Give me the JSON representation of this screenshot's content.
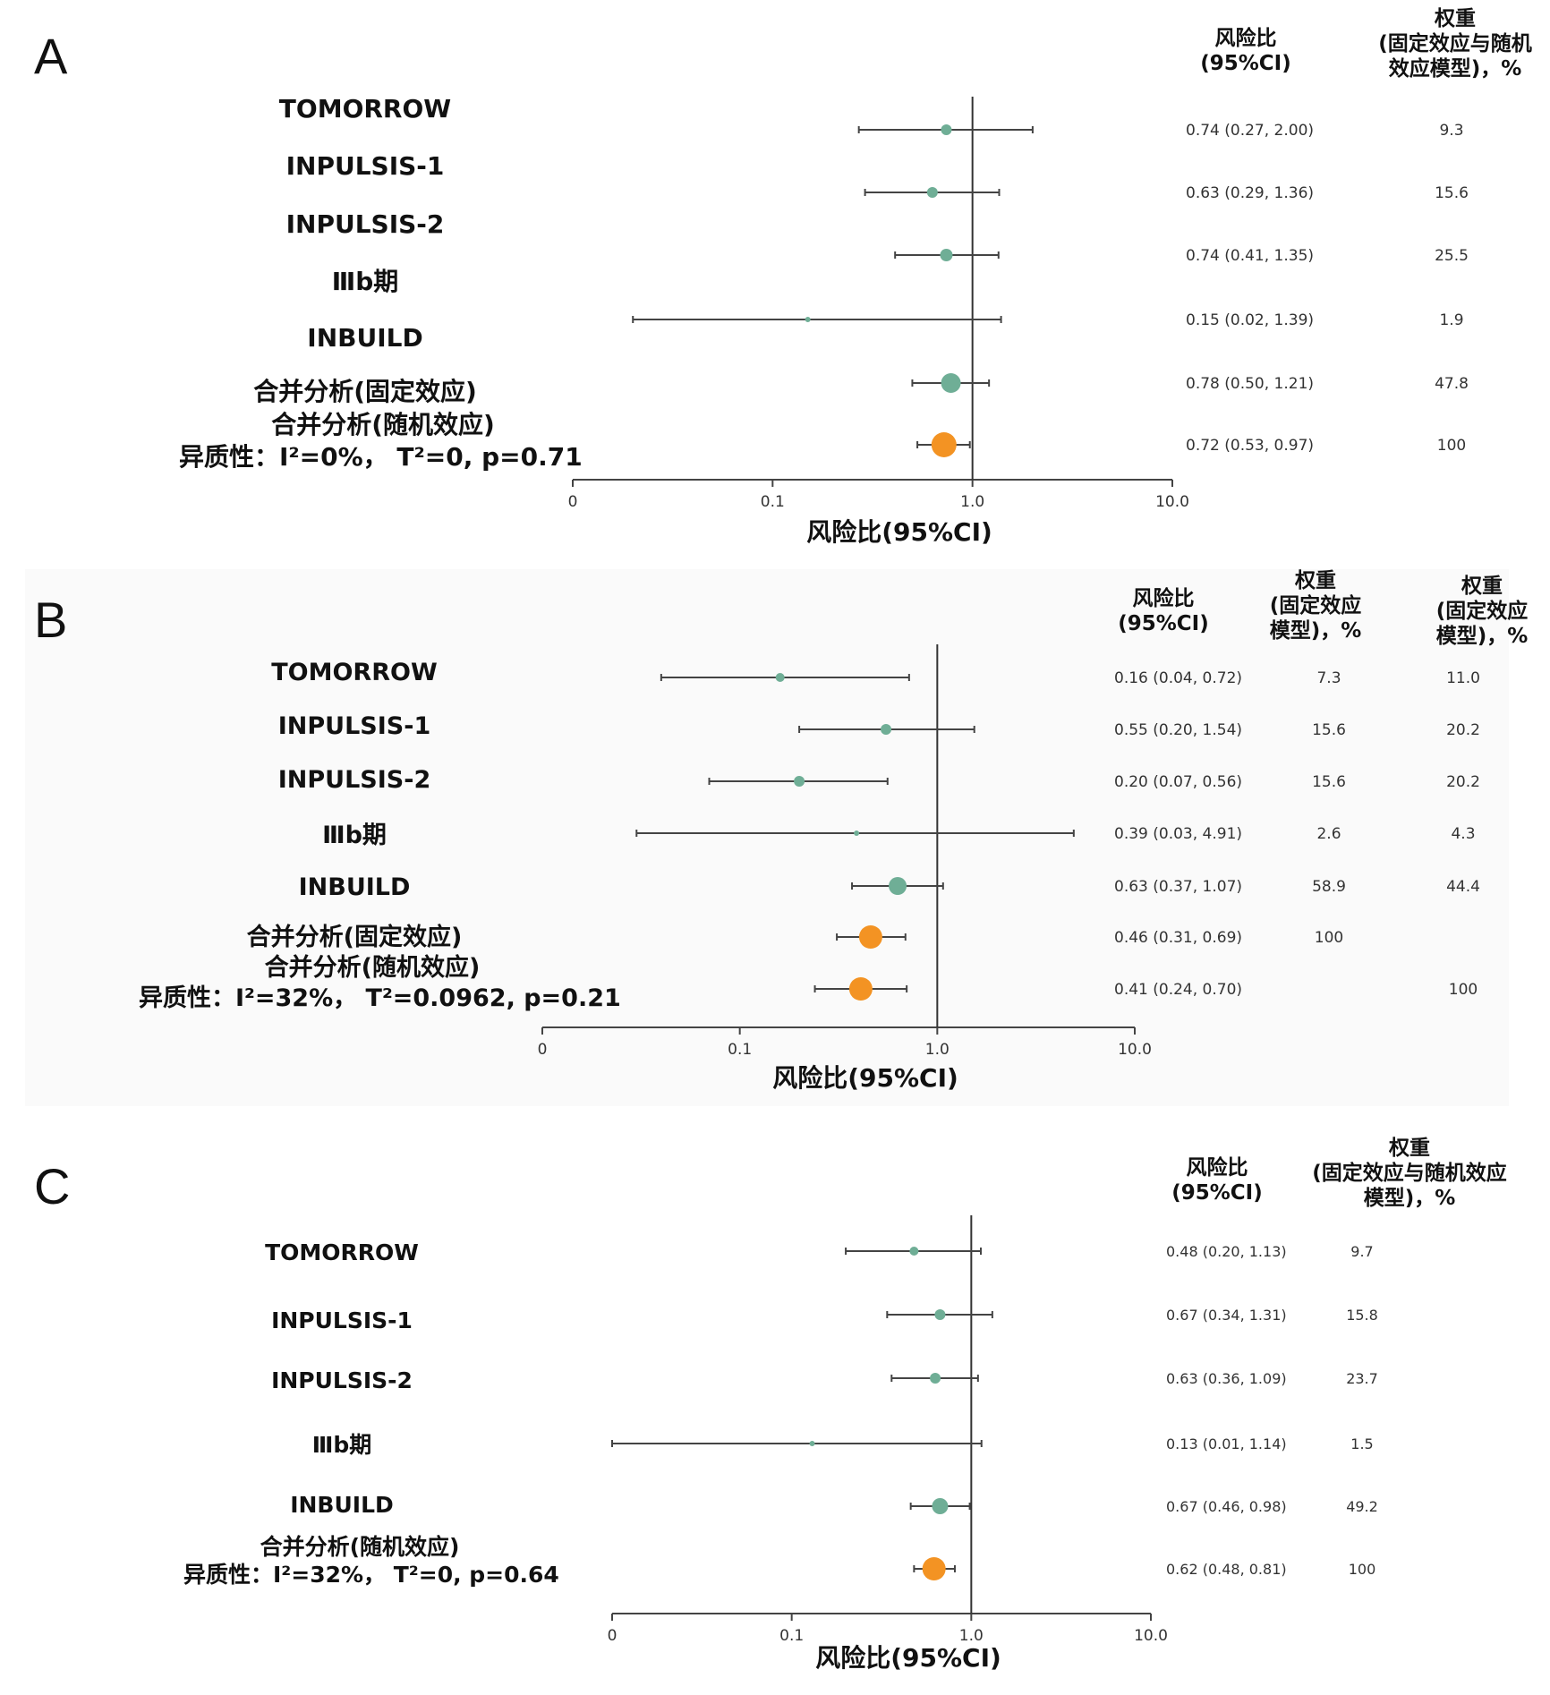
{
  "colors": {
    "small_marker": "#6fae96",
    "pooled_marker": "#f39323",
    "line": "#444444"
  },
  "chart_data": [
    {
      "type": "forest",
      "panel_label": "A",
      "title": "",
      "xlabel": "风险比(95%CI)",
      "x_scale": "log",
      "xticks": [
        0.01,
        0.1,
        1.0,
        10.0
      ],
      "xtick_labels": [
        "0",
        "0.1",
        "1.0",
        "10.0"
      ],
      "reference_line": 1.0,
      "col_headers": [
        "风险比\n(95%CI)",
        "权重\n(固定效应与随机\n效应模型)，%"
      ],
      "rows": [
        {
          "name": "TOMORROW",
          "hr": 0.74,
          "lo": 0.27,
          "hi": 2.0,
          "ci_text": "0.74 (0.27, 2.00)",
          "weights": [
            "9.3"
          ],
          "marker": "small"
        },
        {
          "name": "INPULSIS-1",
          "hr": 0.63,
          "lo": 0.29,
          "hi": 1.36,
          "ci_text": "0.63 (0.29, 1.36)",
          "weights": [
            "15.6"
          ],
          "marker": "small"
        },
        {
          "name": "INPULSIS-2",
          "hr": 0.74,
          "lo": 0.41,
          "hi": 1.35,
          "ci_text": "0.74 (0.41, 1.35)",
          "weights": [
            "25.5"
          ],
          "marker": "small"
        },
        {
          "name": "Ⅲb期",
          "hr": 0.15,
          "lo": 0.02,
          "hi": 1.39,
          "ci_text": "0.15 (0.02, 1.39)",
          "weights": [
            "1.9"
          ],
          "marker": "small"
        },
        {
          "name": "INBUILD",
          "hr": 0.78,
          "lo": 0.5,
          "hi": 1.21,
          "ci_text": "0.78 (0.50, 1.21)",
          "weights": [
            "47.8"
          ],
          "marker": "small"
        },
        {
          "name": "合并分析(固定效应)",
          "hr": 0.72,
          "lo": 0.53,
          "hi": 0.97,
          "ci_text": "0.72 (0.53, 0.97)",
          "weights": [
            "100"
          ],
          "marker": "pooled"
        }
      ],
      "pooled_label": "合并分析(随机效应)",
      "heterogeneity": "异质性：I²=0%， T²=0, p=0.71"
    },
    {
      "type": "forest",
      "panel_label": "B",
      "title": "",
      "xlabel": "风险比(95%CI)",
      "x_scale": "log",
      "xticks": [
        0.01,
        0.1,
        1.0,
        10.0
      ],
      "xtick_labels": [
        "0",
        "0.1",
        "1.0",
        "10.0"
      ],
      "reference_line": 1.0,
      "col_headers": [
        "风险比\n(95%CI)",
        "权重\n(固定效应\n模型)，%",
        "权重\n(固定效应\n模型)，%"
      ],
      "rows": [
        {
          "name": "TOMORROW",
          "hr": 0.16,
          "lo": 0.04,
          "hi": 0.72,
          "ci_text": "0.16 (0.04, 0.72)",
          "weights": [
            "7.3",
            "11.0"
          ],
          "marker": "small"
        },
        {
          "name": "INPULSIS-1",
          "hr": 0.55,
          "lo": 0.2,
          "hi": 1.54,
          "ci_text": "0.55 (0.20, 1.54)",
          "weights": [
            "15.6",
            "20.2"
          ],
          "marker": "small"
        },
        {
          "name": "INPULSIS-2",
          "hr": 0.2,
          "lo": 0.07,
          "hi": 0.56,
          "ci_text": "0.20 (0.07, 0.56)",
          "weights": [
            "15.6",
            "20.2"
          ],
          "marker": "small"
        },
        {
          "name": "Ⅲb期",
          "hr": 0.39,
          "lo": 0.03,
          "hi": 4.91,
          "ci_text": "0.39 (0.03, 4.91)",
          "weights": [
            "2.6",
            "4.3"
          ],
          "marker": "small"
        },
        {
          "name": "INBUILD",
          "hr": 0.63,
          "lo": 0.37,
          "hi": 1.07,
          "ci_text": "0.63 (0.37, 1.07)",
          "weights": [
            "58.9",
            "44.4"
          ],
          "marker": "small"
        },
        {
          "name": "合并分析(固定效应)",
          "hr": 0.46,
          "lo": 0.31,
          "hi": 0.69,
          "ci_text": "0.46 (0.31, 0.69)",
          "weights": [
            "100",
            ""
          ],
          "marker": "pooled"
        },
        {
          "name": "",
          "hr": 0.41,
          "lo": 0.24,
          "hi": 0.7,
          "ci_text": "0.41 (0.24, 0.70)",
          "weights": [
            "",
            "100"
          ],
          "marker": "pooled"
        }
      ],
      "pooled_label": "合并分析(随机效应)",
      "heterogeneity": "异质性：I²=32%， T²=0.0962, p=0.21"
    },
    {
      "type": "forest",
      "panel_label": "C",
      "title": "",
      "xlabel": "风险比(95%CI)",
      "x_scale": "log",
      "xticks": [
        0.01,
        0.1,
        1.0,
        10.0
      ],
      "xtick_labels": [
        "0",
        "0.1",
        "1.0",
        "10.0"
      ],
      "reference_line": 1.0,
      "col_headers": [
        "风险比\n(95%CI)",
        "权重\n(固定效应与随机效应\n模型)，%"
      ],
      "rows": [
        {
          "name": "TOMORROW",
          "hr": 0.48,
          "lo": 0.2,
          "hi": 1.13,
          "ci_text": "0.48 (0.20, 1.13)",
          "weights": [
            "9.7"
          ],
          "marker": "small"
        },
        {
          "name": "INPULSIS-1",
          "hr": 0.67,
          "lo": 0.34,
          "hi": 1.31,
          "ci_text": "0.67 (0.34, 1.31)",
          "weights": [
            "15.8"
          ],
          "marker": "small"
        },
        {
          "name": "INPULSIS-2",
          "hr": 0.63,
          "lo": 0.36,
          "hi": 1.09,
          "ci_text": "0.63 (0.36, 1.09)",
          "weights": [
            "23.7"
          ],
          "marker": "small"
        },
        {
          "name": "Ⅲb期",
          "hr": 0.13,
          "lo": 0.01,
          "hi": 1.14,
          "ci_text": "0.13 (0.01, 1.14)",
          "weights": [
            "1.5"
          ],
          "marker": "small"
        },
        {
          "name": "INBUILD",
          "hr": 0.67,
          "lo": 0.46,
          "hi": 0.98,
          "ci_text": "0.67 (0.46, 0.98)",
          "weights": [
            "49.2"
          ],
          "marker": "small"
        },
        {
          "name": "",
          "hr": 0.62,
          "lo": 0.48,
          "hi": 0.81,
          "ci_text": "0.62 (0.48, 0.81)",
          "weights": [
            "100"
          ],
          "marker": "pooled"
        }
      ],
      "pooled_label": "合并分析(随机效应)",
      "heterogeneity": "异质性：I²=32%， T²=0, p=0.64"
    }
  ]
}
